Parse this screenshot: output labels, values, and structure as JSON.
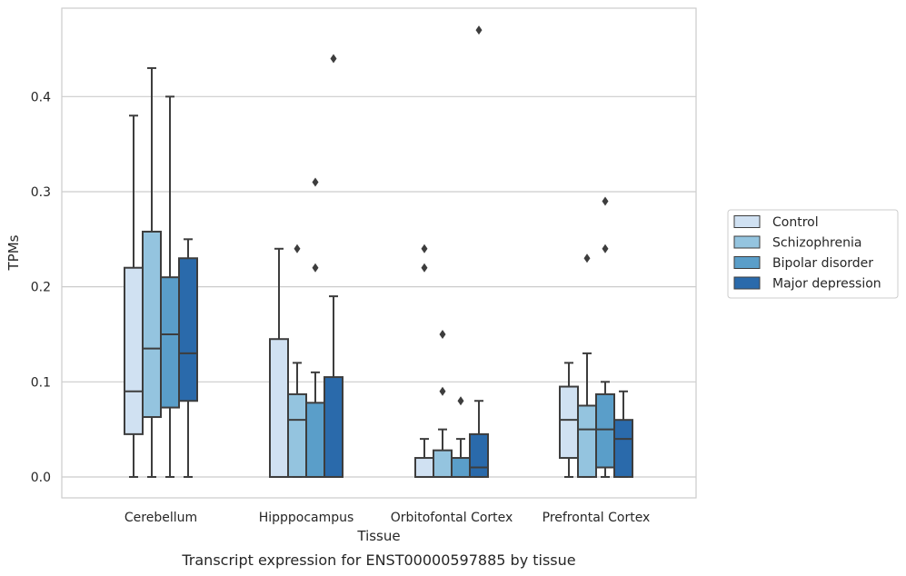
{
  "chart_data": {
    "type": "box",
    "xlabel": "Tissue",
    "ylabel": "TPMs",
    "caption": "Transcript expression for ENST00000597885 by tissue",
    "ylim": [
      -0.022,
      0.493
    ],
    "yticks": [
      0.0,
      0.1,
      0.2,
      0.3,
      0.4
    ],
    "ytick_labels": [
      "0.0",
      "0.1",
      "0.2",
      "0.3",
      "0.4"
    ],
    "grid": "horizontal",
    "legend_position": "outside-right",
    "categories": [
      "Cerebellum",
      "Hipppocampus",
      "Orbitofontal Cortex",
      "Prefrontal Cortex"
    ],
    "series": [
      {
        "name": "Control",
        "color": "#d0e1f2",
        "boxes": [
          {
            "whislo": 0.0,
            "q1": 0.045,
            "median": 0.09,
            "q3": 0.22,
            "whishi": 0.38,
            "fliers": []
          },
          {
            "whislo": 0.0,
            "q1": 0.0,
            "median": 0.0,
            "q3": 0.145,
            "whishi": 0.24,
            "fliers": []
          },
          {
            "whislo": 0.0,
            "q1": 0.0,
            "median": 0.0,
            "q3": 0.02,
            "whishi": 0.04,
            "fliers": [
              0.22,
              0.24
            ]
          },
          {
            "whislo": 0.0,
            "q1": 0.02,
            "median": 0.06,
            "q3": 0.095,
            "whishi": 0.12,
            "fliers": []
          }
        ]
      },
      {
        "name": "Schizophrenia",
        "color": "#94c4df",
        "boxes": [
          {
            "whislo": 0.0,
            "q1": 0.063,
            "median": 0.135,
            "q3": 0.258,
            "whishi": 0.43,
            "fliers": []
          },
          {
            "whislo": 0.0,
            "q1": 0.0,
            "median": 0.06,
            "q3": 0.087,
            "whishi": 0.12,
            "fliers": [
              0.24
            ]
          },
          {
            "whislo": 0.0,
            "q1": 0.0,
            "median": 0.0,
            "q3": 0.028,
            "whishi": 0.05,
            "fliers": [
              0.09,
              0.15
            ]
          },
          {
            "whislo": 0.0,
            "q1": 0.0,
            "median": 0.05,
            "q3": 0.075,
            "whishi": 0.13,
            "fliers": [
              0.23
            ]
          }
        ]
      },
      {
        "name": "Bipolar disorder",
        "color": "#5a9ec9",
        "boxes": [
          {
            "whislo": 0.0,
            "q1": 0.073,
            "median": 0.15,
            "q3": 0.21,
            "whishi": 0.4,
            "fliers": []
          },
          {
            "whislo": 0.0,
            "q1": 0.0,
            "median": 0.0,
            "q3": 0.078,
            "whishi": 0.11,
            "fliers": [
              0.22,
              0.31
            ]
          },
          {
            "whislo": 0.0,
            "q1": 0.0,
            "median": 0.0,
            "q3": 0.02,
            "whishi": 0.04,
            "fliers": [
              0.08
            ]
          },
          {
            "whislo": 0.0,
            "q1": 0.01,
            "median": 0.05,
            "q3": 0.087,
            "whishi": 0.1,
            "fliers": [
              0.24,
              0.29
            ]
          }
        ]
      },
      {
        "name": "Major depression",
        "color": "#2a6aab",
        "boxes": [
          {
            "whislo": 0.0,
            "q1": 0.08,
            "median": 0.13,
            "q3": 0.23,
            "whishi": 0.25,
            "fliers": []
          },
          {
            "whislo": 0.0,
            "q1": 0.0,
            "median": 0.0,
            "q3": 0.105,
            "whishi": 0.19,
            "fliers": [
              0.44
            ]
          },
          {
            "whislo": 0.0,
            "q1": 0.0,
            "median": 0.01,
            "q3": 0.045,
            "whishi": 0.08,
            "fliers": [
              0.47
            ]
          },
          {
            "whislo": 0.0,
            "q1": 0.0,
            "median": 0.04,
            "q3": 0.06,
            "whishi": 0.09,
            "fliers": []
          }
        ]
      }
    ]
  }
}
